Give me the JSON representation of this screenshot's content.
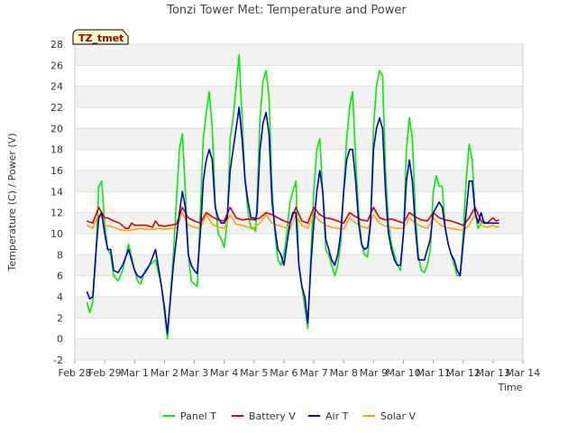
{
  "chart_data": {
    "type": "line",
    "title": "Tonzi Tower Met: Temperature and Power",
    "xlabel": "Time",
    "ylabel": "Temperature (C) / Power (V)",
    "ylim": [
      -2,
      28
    ],
    "yticks": [
      -2,
      0,
      2,
      4,
      6,
      8,
      10,
      12,
      14,
      16,
      18,
      20,
      22,
      24,
      26,
      28
    ],
    "xlim": [
      0,
      15
    ],
    "xticks": [
      {
        "x": 0,
        "label": "Feb 28"
      },
      {
        "x": 1,
        "label": "Feb 29"
      },
      {
        "x": 2,
        "label": "Mar 1"
      },
      {
        "x": 3,
        "label": "Mar 2"
      },
      {
        "x": 4,
        "label": "Mar 3"
      },
      {
        "x": 5,
        "label": "Mar 4"
      },
      {
        "x": 6,
        "label": "Mar 5"
      },
      {
        "x": 7,
        "label": "Mar 6"
      },
      {
        "x": 8,
        "label": "Mar 7"
      },
      {
        "x": 9,
        "label": "Mar 8"
      },
      {
        "x": 10,
        "label": "Mar 9"
      },
      {
        "x": 11,
        "label": "Mar 10"
      },
      {
        "x": 12,
        "label": "Mar 11"
      },
      {
        "x": 13,
        "label": "Mar 12"
      },
      {
        "x": 14,
        "label": "Mar 13"
      },
      {
        "x": 15,
        "label": "Mar 14"
      }
    ],
    "grid": "horizontal-bands",
    "legend_position": "bottom",
    "site_tag": "TZ_tmet",
    "series": [
      {
        "name": "Panel T",
        "color": "#00ee00",
        "x": [
          0.4,
          0.5,
          0.6,
          0.7,
          0.8,
          0.9,
          1.0,
          1.1,
          1.2,
          1.3,
          1.45,
          1.6,
          1.8,
          2.0,
          2.1,
          2.2,
          2.35,
          2.5,
          2.7,
          2.9,
          3.0,
          3.1,
          3.3,
          3.5,
          3.6,
          3.7,
          3.8,
          3.9,
          4.0,
          4.1,
          4.2,
          4.3,
          4.4,
          4.5,
          4.6,
          4.7,
          4.8,
          4.9,
          5.0,
          5.1,
          5.2,
          5.3,
          5.4,
          5.5,
          5.6,
          5.7,
          5.8,
          5.9,
          6.0,
          6.05,
          6.1,
          6.2,
          6.3,
          6.4,
          6.5,
          6.6,
          6.7,
          6.8,
          6.9,
          7.0,
          7.05,
          7.1,
          7.2,
          7.3,
          7.4,
          7.5,
          7.6,
          7.7,
          7.8,
          7.9,
          8.0,
          8.1,
          8.2,
          8.3,
          8.4,
          8.5,
          8.6,
          8.7,
          8.8,
          8.9,
          9.0,
          9.1,
          9.2,
          9.3,
          9.4,
          9.5,
          9.6,
          9.7,
          9.8,
          9.9,
          10.0,
          10.1,
          10.2,
          10.3,
          10.4,
          10.5,
          10.6,
          10.7,
          10.8,
          10.9,
          11.0,
          11.1,
          11.2,
          11.3,
          11.4,
          11.5,
          11.6,
          11.7,
          11.8,
          11.9,
          12.0,
          12.1,
          12.2,
          12.3,
          12.4,
          12.5,
          12.6,
          12.7,
          12.8,
          12.9,
          13.0,
          13.1,
          13.2,
          13.3,
          13.4,
          13.5,
          13.6,
          13.7,
          13.8,
          13.9,
          14.0,
          14.1,
          14.2
        ],
        "y": [
          3.5,
          2.5,
          3.5,
          7.5,
          14.5,
          15.0,
          11.0,
          8.5,
          8.0,
          6.0,
          5.5,
          6.5,
          9.0,
          6.5,
          5.5,
          5.2,
          6.5,
          7.0,
          7.5,
          5.0,
          2.5,
          0.0,
          8.0,
          18.0,
          19.5,
          14.0,
          8.0,
          5.5,
          5.2,
          5.0,
          12.0,
          19.0,
          21.5,
          23.5,
          20.0,
          13.0,
          10.0,
          9.5,
          8.7,
          11.0,
          19.0,
          21.0,
          24.0,
          27.0,
          21.0,
          15.0,
          12.0,
          10.5,
          10.5,
          10.2,
          13.0,
          21.0,
          24.5,
          25.5,
          23.0,
          14.5,
          10.0,
          7.5,
          7.0,
          8.0,
          9.0,
          10.0,
          13.0,
          14.0,
          15.0,
          7.0,
          5.0,
          3.0,
          1.0,
          8.0,
          14.0,
          18.0,
          19.0,
          14.0,
          8.5,
          8.0,
          7.0,
          6.0,
          7.0,
          9.0,
          14.0,
          19.0,
          22.0,
          23.5,
          17.0,
          12.0,
          9.0,
          8.0,
          7.8,
          11.0,
          20.0,
          24.0,
          25.5,
          25.0,
          16.0,
          11.0,
          9.0,
          8.0,
          7.0,
          6.5,
          10.0,
          18.0,
          21.0,
          19.0,
          12.0,
          8.0,
          6.5,
          6.3,
          7.0,
          8.5,
          14.0,
          15.5,
          14.5,
          14.5,
          10.5,
          9.0,
          8.0,
          7.0,
          6.0,
          6.0,
          10.0,
          15.0,
          18.5,
          17.0,
          12.0,
          10.5,
          11.0,
          11.0,
          11.0,
          11.0,
          11.0,
          11.0,
          11.0
        ]
      },
      {
        "name": "Battery V",
        "color": "#dd0000",
        "x": [
          0.4,
          0.6,
          0.8,
          0.9,
          1.0,
          1.1,
          1.3,
          1.5,
          1.7,
          1.8,
          1.9,
          2.0,
          2.2,
          2.4,
          2.6,
          2.7,
          2.8,
          3.0,
          3.2,
          3.4,
          3.6,
          3.8,
          4.0,
          4.2,
          4.4,
          4.6,
          4.8,
          5.0,
          5.2,
          5.4,
          5.6,
          5.8,
          6.0,
          6.2,
          6.4,
          6.6,
          6.8,
          7.0,
          7.2,
          7.4,
          7.6,
          7.8,
          8.0,
          8.2,
          8.4,
          8.6,
          8.8,
          9.0,
          9.2,
          9.4,
          9.6,
          9.8,
          10.0,
          10.2,
          10.4,
          10.6,
          10.8,
          11.0,
          11.2,
          11.4,
          11.6,
          11.8,
          12.0,
          12.2,
          12.4,
          12.6,
          12.8,
          13.0,
          13.2,
          13.4,
          13.6,
          13.8,
          14.0,
          14.1,
          14.2
        ],
        "y": [
          11.2,
          11.0,
          12.5,
          12.0,
          11.5,
          11.5,
          11.2,
          11.0,
          10.5,
          10.5,
          11.0,
          10.8,
          10.8,
          10.8,
          10.6,
          11.2,
          10.8,
          10.7,
          10.8,
          10.9,
          12.5,
          11.5,
          11.2,
          11.0,
          12.0,
          11.6,
          11.3,
          11.2,
          12.5,
          11.5,
          11.3,
          11.4,
          11.3,
          11.5,
          12.0,
          11.8,
          11.5,
          11.2,
          11.0,
          12.5,
          11.2,
          11.0,
          12.5,
          11.8,
          11.5,
          11.4,
          11.2,
          11.0,
          12.0,
          11.6,
          11.3,
          11.2,
          12.5,
          11.5,
          11.3,
          11.4,
          11.2,
          11.0,
          12.0,
          11.6,
          11.3,
          11.2,
          12.0,
          11.5,
          11.3,
          11.2,
          11.0,
          10.8,
          11.5,
          12.5,
          11.2,
          11.0,
          11.5,
          11.2,
          11.3
        ]
      },
      {
        "name": "Air T",
        "color": "#0000cc",
        "x": [
          0.4,
          0.5,
          0.6,
          0.7,
          0.8,
          0.9,
          1.0,
          1.1,
          1.2,
          1.3,
          1.45,
          1.6,
          1.8,
          2.0,
          2.1,
          2.2,
          2.35,
          2.5,
          2.7,
          2.9,
          3.0,
          3.1,
          3.3,
          3.5,
          3.6,
          3.7,
          3.8,
          3.9,
          4.0,
          4.1,
          4.2,
          4.3,
          4.4,
          4.5,
          4.6,
          4.7,
          4.8,
          4.9,
          5.0,
          5.1,
          5.2,
          5.3,
          5.4,
          5.5,
          5.6,
          5.7,
          5.8,
          5.9,
          6.0,
          6.05,
          6.1,
          6.2,
          6.3,
          6.4,
          6.5,
          6.6,
          6.7,
          6.8,
          6.9,
          7.0,
          7.05,
          7.1,
          7.2,
          7.3,
          7.4,
          7.5,
          7.6,
          7.7,
          7.8,
          7.9,
          8.0,
          8.1,
          8.2,
          8.3,
          8.4,
          8.5,
          8.6,
          8.7,
          8.8,
          8.9,
          9.0,
          9.1,
          9.2,
          9.3,
          9.4,
          9.5,
          9.6,
          9.7,
          9.8,
          9.9,
          10.0,
          10.1,
          10.2,
          10.3,
          10.4,
          10.5,
          10.6,
          10.7,
          10.8,
          10.9,
          11.0,
          11.1,
          11.2,
          11.3,
          11.4,
          11.5,
          11.6,
          11.7,
          11.8,
          11.9,
          12.0,
          12.1,
          12.2,
          12.3,
          12.4,
          12.5,
          12.6,
          12.7,
          12.8,
          12.9,
          13.0,
          13.1,
          13.2,
          13.3,
          13.4,
          13.5,
          13.6,
          13.7,
          13.8,
          13.9,
          14.0,
          14.1,
          14.2
        ],
        "y": [
          4.5,
          3.8,
          4.0,
          8.0,
          11.5,
          12.0,
          10.0,
          8.5,
          8.5,
          6.5,
          6.3,
          7.0,
          8.5,
          6.5,
          6.0,
          5.8,
          6.3,
          7.0,
          8.5,
          5.0,
          3.0,
          0.5,
          7.0,
          12.0,
          14.0,
          12.5,
          8.0,
          7.0,
          6.5,
          6.2,
          10.0,
          15.0,
          17.0,
          18.0,
          17.0,
          12.5,
          11.5,
          11.0,
          11.0,
          11.5,
          16.0,
          18.0,
          20.0,
          22.0,
          19.0,
          15.0,
          13.0,
          11.5,
          11.5,
          11.3,
          12.0,
          18.0,
          20.5,
          21.5,
          19.5,
          13.0,
          10.5,
          8.5,
          8.0,
          7.0,
          8.0,
          9.0,
          11.0,
          12.0,
          12.0,
          7.0,
          5.0,
          4.0,
          1.5,
          7.0,
          11.0,
          14.0,
          16.0,
          14.0,
          9.5,
          8.5,
          7.5,
          7.0,
          8.0,
          10.0,
          14.0,
          17.0,
          18.0,
          18.0,
          15.0,
          11.0,
          9.0,
          8.5,
          8.7,
          11.0,
          18.0,
          20.0,
          21.0,
          20.0,
          14.0,
          10.0,
          8.5,
          7.5,
          7.0,
          7.0,
          10.0,
          15.0,
          17.0,
          15.0,
          10.5,
          7.5,
          7.5,
          7.5,
          8.5,
          9.5,
          12.0,
          12.5,
          13.0,
          12.5,
          10.5,
          9.0,
          8.0,
          7.5,
          6.5,
          6.0,
          9.0,
          12.0,
          15.0,
          15.0,
          12.0,
          11.0,
          12.0,
          11.0,
          11.0,
          11.0,
          11.0,
          11.0,
          11.0
        ]
      },
      {
        "name": "Solar V",
        "color": "#ffa500",
        "x": [
          0.4,
          0.6,
          0.8,
          0.9,
          1.0,
          1.2,
          1.4,
          1.6,
          1.8,
          2.0,
          2.2,
          2.4,
          2.6,
          2.8,
          3.0,
          3.2,
          3.4,
          3.6,
          3.8,
          4.0,
          4.2,
          4.4,
          4.6,
          4.8,
          5.0,
          5.2,
          5.4,
          5.6,
          5.8,
          6.0,
          6.2,
          6.4,
          6.6,
          6.8,
          7.0,
          7.2,
          7.4,
          7.6,
          7.8,
          8.0,
          8.2,
          8.4,
          8.6,
          8.8,
          9.0,
          9.2,
          9.4,
          9.6,
          9.8,
          10.0,
          10.2,
          10.4,
          10.6,
          10.8,
          11.0,
          11.2,
          11.4,
          11.6,
          11.8,
          12.0,
          12.2,
          12.4,
          12.6,
          12.8,
          13.0,
          13.2,
          13.4,
          13.6,
          13.8,
          14.0,
          14.1,
          14.2
        ],
        "y": [
          10.8,
          10.5,
          11.8,
          11.5,
          10.8,
          10.7,
          10.5,
          10.3,
          10.3,
          10.4,
          10.5,
          10.4,
          10.4,
          10.5,
          10.4,
          10.5,
          10.5,
          12.0,
          10.8,
          10.6,
          10.5,
          11.8,
          10.9,
          10.6,
          10.5,
          11.8,
          10.9,
          10.8,
          10.6,
          10.6,
          11.0,
          11.8,
          11.0,
          10.8,
          10.6,
          10.4,
          11.8,
          10.8,
          10.5,
          11.8,
          11.2,
          10.8,
          10.6,
          10.5,
          10.4,
          11.5,
          11.0,
          10.7,
          10.5,
          11.8,
          11.0,
          10.7,
          10.6,
          10.5,
          10.5,
          11.5,
          11.0,
          10.7,
          10.5,
          11.5,
          10.9,
          10.6,
          10.5,
          10.4,
          10.3,
          10.8,
          11.8,
          10.8,
          10.6,
          10.8,
          10.6,
          10.7
        ]
      }
    ]
  }
}
